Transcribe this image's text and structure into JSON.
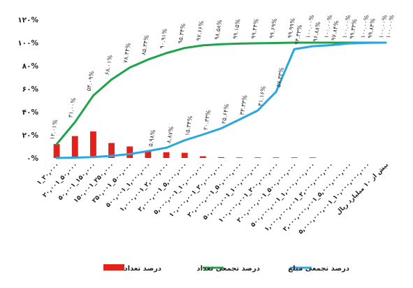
{
  "chart_data": {
    "type": "bar",
    "title": "",
    "xlabel": "",
    "ylabel": "",
    "ylim": [
      0,
      120
    ],
    "y_ticks": [
      "۰%",
      "۲۰%",
      "۴۰%",
      "۶۰%",
      "۸۰%",
      "۱۰۰%",
      "۱۲۰%"
    ],
    "y_tick_values": [
      0,
      20,
      40,
      60,
      80,
      100,
      120
    ],
    "grid": false,
    "legend_position": "bottom",
    "categories": [
      "۱_۲۰,۰۰۰",
      "۲۰,۰۰۱_۵۰,۰۰۰",
      "۵۰,۰۰۱_۱۵۰,۰۰۰",
      "۱۵۰,۰۰۱_۲۵۰,۰۰۰",
      "۲۵۰,۰۰۱_۵۰۰,۰۰۰",
      "۵۰۰,۰۰۱_۱,۰۰۰,۰۰۰",
      "۱,۰۰۰,۰۰۱_۲,۰۰۰,۰۰۰",
      "۲,۰۰۰,۰۰۱_۵,۰۰۰,۰۰۰",
      "۵,۰۰۰,۰۰۱_۱۰,۰۰۰,۰۰۰",
      "۱۰,۰۰۰,۰۰۱_۲۰,۰۰۰,۰۰۰",
      "۲۰,۰۰۰,۰۰۱_۵۰,۰۰۰,۰۰۰",
      "۵۰,۰۰۰,۰۰۱_۱۰۰,۰۰۰,۰۰۰",
      "۱۰۰,۰۰۰,۰۰۱_۲۰۰,۰۰۰,۰۰۰",
      "۲۰۰,۰۰۰,۰۰۱_۵۰۰,۰۰۰,۰۰۰",
      "۵۰۰,۰۰۰,۰۰۱_۱,۰۰۰,۰۰۰,۰۰۰",
      "۱,۰۰۰,۰۰۰,۰۰۱_۲,۰۰۰,۰۰۰,۰۰۰",
      "۲,۰۰۰,۰۰۰,۰۰۱_۵,۰۰۰,۰۰۰,۰۰۰",
      "۵,۰۰۰,۰۰۰,۰۰۱_۱۰,۰۰۰,۰۰۰,۰۰۰",
      "بیش از ۱۰ میلیارد ریال"
    ],
    "series": [
      {
        "name": "درصد تعداد",
        "kind": "bar",
        "color": "#e2211c",
        "values": [
          12.0,
          19.0,
          23.0,
          13.0,
          10.0,
          6.0,
          5.0,
          4.5,
          1.5,
          0.7,
          0.4,
          0.2,
          0.1,
          0.1,
          0.1,
          0.0,
          0.0,
          0.0,
          0.0
        ]
      },
      {
        "name": "درصد تجمعی تعداد",
        "kind": "line",
        "color": "#1fa34a",
        "values": [
          12.01,
          31.0,
          54.09,
          68.0,
          78.44,
          85.34,
          90.91,
          95.34,
          97.66,
          98.58,
          99.15,
          99.44,
          99.69,
          99.99,
          100.0,
          100.0,
          100.0,
          100.0,
          100.0
        ],
        "labels": [
          "۱۲.۰۱%",
          "۳۱.۰۰%",
          "۵۴.۰۹%",
          "۶۸.۰۱%",
          "۷۸.۴۴%",
          "۸۵.۳۴%",
          "۹۰.۹۱%",
          "۹۵.۳۴%",
          "۹۷.۶۶%",
          "۹۸.۵۸%",
          "۹۹.۱۵%",
          "۹۹.۴۴%",
          "۹۹.۶۹%",
          "۹۹.۹۹%",
          "۱۰۰.۰۰%",
          "۱۰۰.۰۰%",
          "۱۰۰.۰۰%",
          "۱۰۰.۰۰%",
          "۱۰۰.۰۰%"
        ]
      },
      {
        "name": "درصد تجمعی مبلغ",
        "kind": "line",
        "color": "#2aa6e0",
        "values": [
          0.0,
          0.3,
          0.8,
          1.8,
          3.4,
          5.98,
          8.87,
          15.34,
          20.33,
          25.64,
          33.33,
          41.16,
          57.33,
          94.33,
          96.88,
          97.84,
          99.33,
          99.84,
          100.0
        ],
        "labels": [
          "",
          "",
          "",
          "",
          "",
          "۵.۹۸%",
          "۸.۸۷%",
          "۱۵.۳۴%",
          "۲۰.۳۳%",
          "۲۵.۶۴%",
          "۳۳.۳۳%",
          "۴۱.۱۶%",
          "۵۷.۳۳%",
          "۹۴.۳۳%",
          "۹۶.۸۸%",
          "۹۷.۸۴%",
          "۹۹.۳۳%",
          "۹۹.۸۴%",
          "۱۰۰.۰۰%"
        ]
      }
    ]
  },
  "legend": [
    {
      "label": "درصد تعداد",
      "color": "#e2211c",
      "kind": "bar"
    },
    {
      "label": "درصد تجمعی تعداد",
      "color": "#1fa34a",
      "kind": "line"
    },
    {
      "label": "درصد تجمعی مبلغ",
      "color": "#2aa6e0",
      "kind": "line"
    }
  ]
}
